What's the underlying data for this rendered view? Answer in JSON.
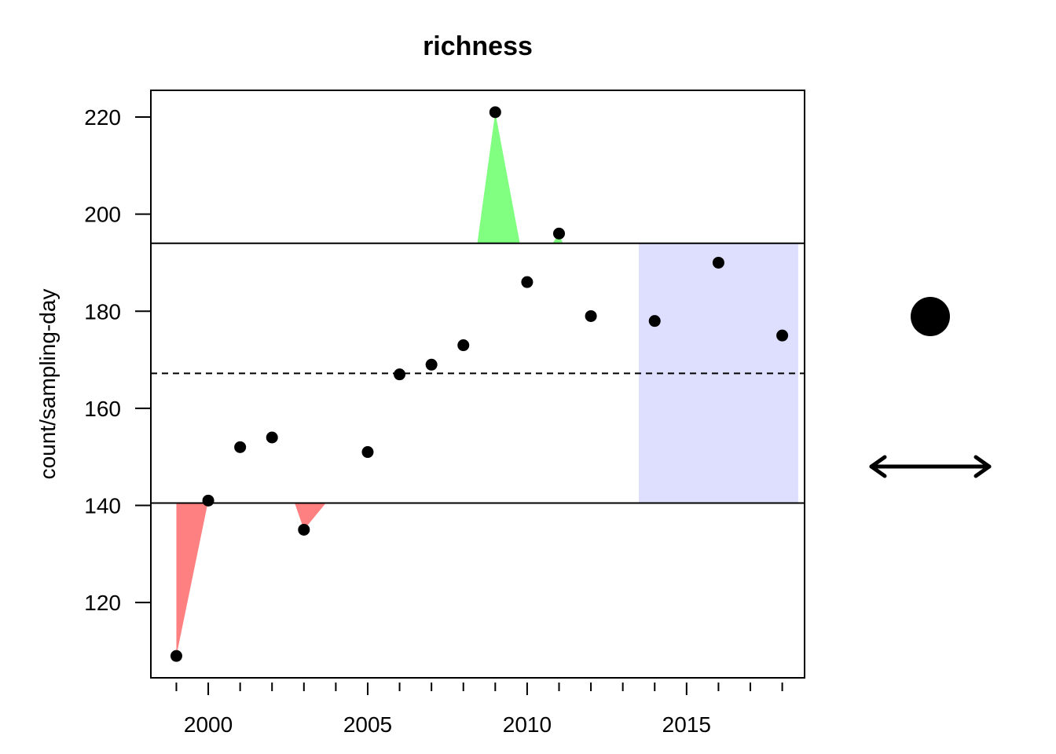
{
  "chart_data": {
    "type": "scatter",
    "title": "richness",
    "xlabel": "",
    "ylabel": "count/sampling-day",
    "xlim": [
      1998.2,
      2018.7
    ],
    "ylim": [
      104.5,
      225.5
    ],
    "x_ticks": [
      2000,
      2005,
      2010,
      2015
    ],
    "x_minor_ticks": [
      1999,
      2001,
      2002,
      2003,
      2004,
      2006,
      2007,
      2008,
      2009,
      2011,
      2012,
      2013,
      2014,
      2016,
      2017,
      2018
    ],
    "y_ticks": [
      120,
      140,
      160,
      180,
      200,
      220
    ],
    "upper_limit": 194,
    "lower_limit": 140.5,
    "mean": 167.2,
    "highlight_range": [
      2013.5,
      2018.5
    ],
    "colors": {
      "above": "#80ff80",
      "below": "#ff8080",
      "highlight": "#dedeff",
      "points": "#000000"
    },
    "series": [
      {
        "x": [
          1999,
          2000,
          2001,
          2002,
          2003,
          2005,
          2006,
          2007,
          2008,
          2009,
          2010,
          2011,
          2012,
          2014,
          2016,
          2018
        ],
        "values": [
          109,
          141,
          152,
          154,
          135,
          151,
          167,
          169,
          173,
          221,
          186,
          196,
          179,
          178,
          190,
          175
        ]
      }
    ]
  },
  "indicators": {
    "status_icon": "filled-circle",
    "trend_icon": "double-headed-arrow"
  }
}
